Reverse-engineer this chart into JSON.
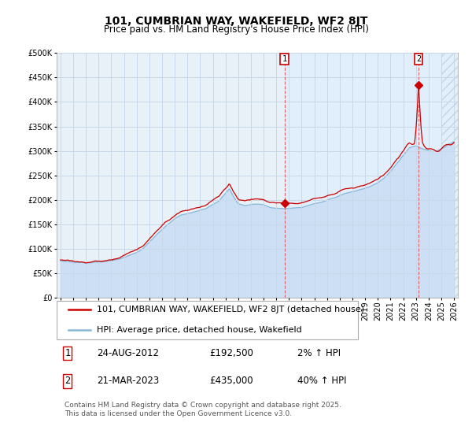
{
  "title": "101, CUMBRIAN WAY, WAKEFIELD, WF2 8JT",
  "subtitle": "Price paid vs. HM Land Registry's House Price Index (HPI)",
  "ylim": [
    0,
    500000
  ],
  "yticks": [
    0,
    50000,
    100000,
    150000,
    200000,
    250000,
    300000,
    350000,
    400000,
    450000,
    500000
  ],
  "xlim_start": 1994.7,
  "xlim_end": 2026.3,
  "hpi_fill_color": "#ccdff5",
  "hpi_line_color": "#88b8d8",
  "price_color": "#cc0000",
  "vline_color": "#dd4444",
  "point1_x": 2012.646,
  "point1_y": 192500,
  "point2_x": 2023.22,
  "point2_y": 435000,
  "point1_date": "24-AUG-2012",
  "point1_price": "£192,500",
  "point1_hpi": "2% ↑ HPI",
  "point2_date": "21-MAR-2023",
  "point2_price": "£435,000",
  "point2_hpi": "40% ↑ HPI",
  "legend_line1": "101, CUMBRIAN WAY, WAKEFIELD, WF2 8JT (detached house)",
  "legend_line2": "HPI: Average price, detached house, Wakefield",
  "footer": "Contains HM Land Registry data © Crown copyright and database right 2025.\nThis data is licensed under the Open Government Licence v3.0.",
  "bg_color": "#e8f0f8",
  "bg_color_after": "#ddeeff",
  "grid_color": "#c8d8e8",
  "hatch_region_start": 2025.0,
  "title_fontsize": 10,
  "subtitle_fontsize": 8.5,
  "tick_fontsize": 7,
  "legend_fontsize": 8,
  "footer_fontsize": 6.5,
  "label_fontsize": 7.5
}
